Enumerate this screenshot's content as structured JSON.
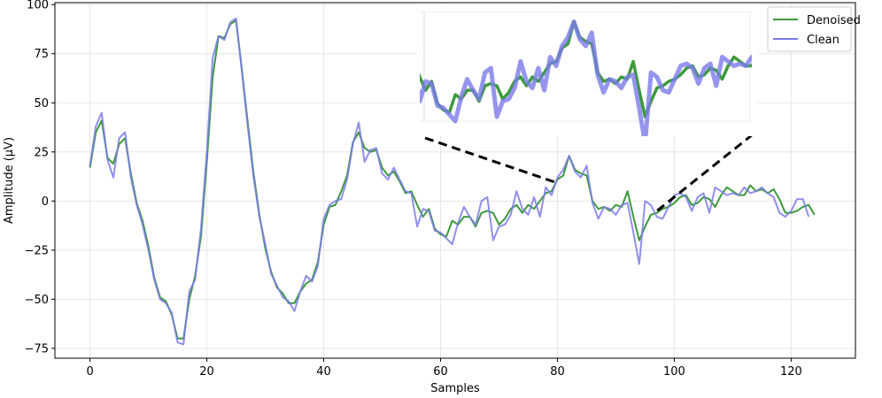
{
  "chart_data": {
    "type": "line",
    "xlabel": "Samples",
    "ylabel": "Amplitude (µV)",
    "xlim": [
      -6,
      131
    ],
    "ylim": [
      -80,
      101
    ],
    "xticks": [
      0,
      20,
      40,
      60,
      80,
      100,
      120
    ],
    "yticks": [
      -75,
      -50,
      -25,
      0,
      25,
      50,
      75,
      100
    ],
    "grid": true,
    "legend": "top-right",
    "series": [
      {
        "name": "Denoised",
        "color": "#3c9a3c",
        "values": [
          17,
          35,
          41,
          22,
          19,
          29,
          32,
          14,
          -1,
          -10,
          -23,
          -39,
          -49,
          -51,
          -58,
          -70,
          -70,
          -50,
          -38,
          -18,
          20,
          63,
          84,
          83,
          90,
          92,
          67,
          40,
          14,
          -7,
          -24,
          -36,
          -44,
          -47,
          -52,
          -52,
          -46,
          -42,
          -40,
          -31,
          -12,
          -3,
          -2,
          5,
          13,
          30,
          35,
          27,
          25,
          26,
          17,
          13,
          15,
          10,
          4,
          5,
          -2,
          -8,
          -4,
          -14,
          -17,
          -18,
          -10,
          -12,
          -8,
          -8,
          -13,
          -6,
          -5,
          -6,
          -12,
          -9,
          -4,
          -2,
          -6,
          -2,
          -4,
          0,
          4,
          5,
          11,
          13,
          23,
          16,
          14,
          13,
          0,
          -4,
          -3,
          -5,
          -2,
          -3,
          5,
          -8,
          -20,
          -13,
          -7,
          -6,
          -4,
          -3,
          -1,
          2,
          3,
          -2,
          -1,
          2,
          1,
          -3,
          3,
          7,
          5,
          3,
          3,
          8,
          5,
          6,
          4,
          6,
          1,
          -6,
          -6,
          -5,
          -3,
          -2,
          -7
        ]
      },
      {
        "name": "Clean",
        "color": "#7b7bea",
        "values": [
          18,
          38,
          45,
          21,
          12,
          32,
          35,
          12,
          -2,
          -12,
          -25,
          -40,
          -50,
          -52,
          -57,
          -72,
          -73,
          -46,
          -40,
          -14,
          25,
          73,
          84,
          82,
          91,
          93,
          66,
          38,
          12,
          -8,
          -22,
          -37,
          -43,
          -49,
          -51,
          -56,
          -46,
          -38,
          -41,
          -33,
          -9,
          -2,
          0,
          1,
          11,
          29,
          40,
          20,
          26,
          27,
          14,
          11,
          17,
          11,
          5,
          4,
          -13,
          -4,
          -5,
          -15,
          -16,
          -19,
          -22,
          -11,
          -3,
          -8,
          -12,
          0,
          2,
          -20,
          -13,
          -12,
          -7,
          5,
          -4,
          -7,
          2,
          -8,
          7,
          3,
          12,
          16,
          23,
          15,
          12,
          18,
          -1,
          -9,
          -3,
          -4,
          -7,
          -2,
          -1,
          -16,
          -32,
          0,
          -2,
          -8,
          -9,
          -3,
          3,
          4,
          2,
          -5,
          2,
          4,
          -6,
          7,
          5,
          3,
          4,
          3,
          7,
          4,
          5,
          7,
          4,
          2,
          -6,
          -8,
          -5,
          1,
          1,
          -8
        ]
      }
    ],
    "inset": {
      "xlim": [
        56,
        112
      ],
      "ylim": [
        -22,
        28
      ],
      "connector_targets": [
        80,
        97
      ]
    }
  }
}
